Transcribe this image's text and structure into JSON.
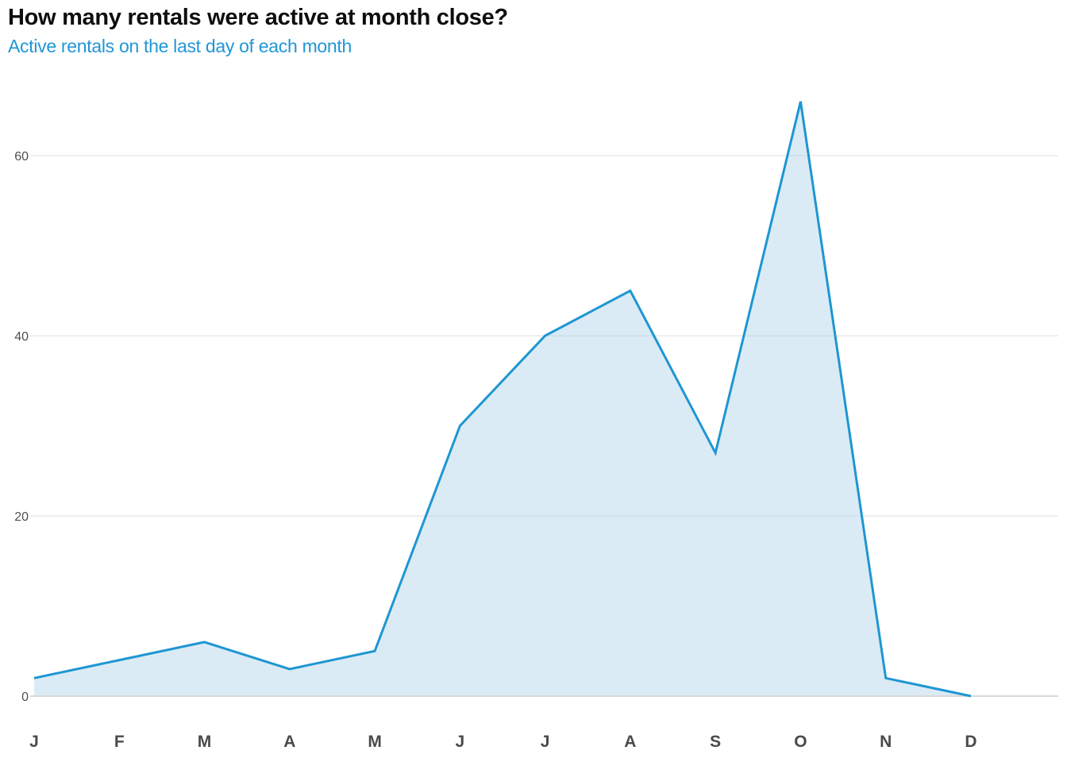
{
  "header": {
    "title": "How many rentals were active at month close?",
    "subtitle": "Active rentals on the last day of each month"
  },
  "chart_data": {
    "type": "area",
    "title": "How many rentals were active at month close?",
    "subtitle": "Active rentals on the last day of each month",
    "categories": [
      "J",
      "F",
      "M",
      "A",
      "M",
      "J",
      "J",
      "A",
      "S",
      "O",
      "N",
      "D"
    ],
    "values": [
      2,
      4,
      6,
      3,
      5,
      30,
      40,
      45,
      27,
      66,
      2,
      0
    ],
    "xlabel": "",
    "ylabel": "",
    "yticks": [
      0,
      20,
      40,
      60
    ],
    "ylim": [
      0,
      68
    ],
    "grid": "horizontal",
    "legend": "none",
    "line_color": "#1e96d2",
    "fill_color": "#b8d8ec",
    "fill_opacity": 0.5,
    "subtitle_color": "#2196d6",
    "axis_label_color": "#4a4a4a",
    "grid_color": "#e8e8e8"
  }
}
